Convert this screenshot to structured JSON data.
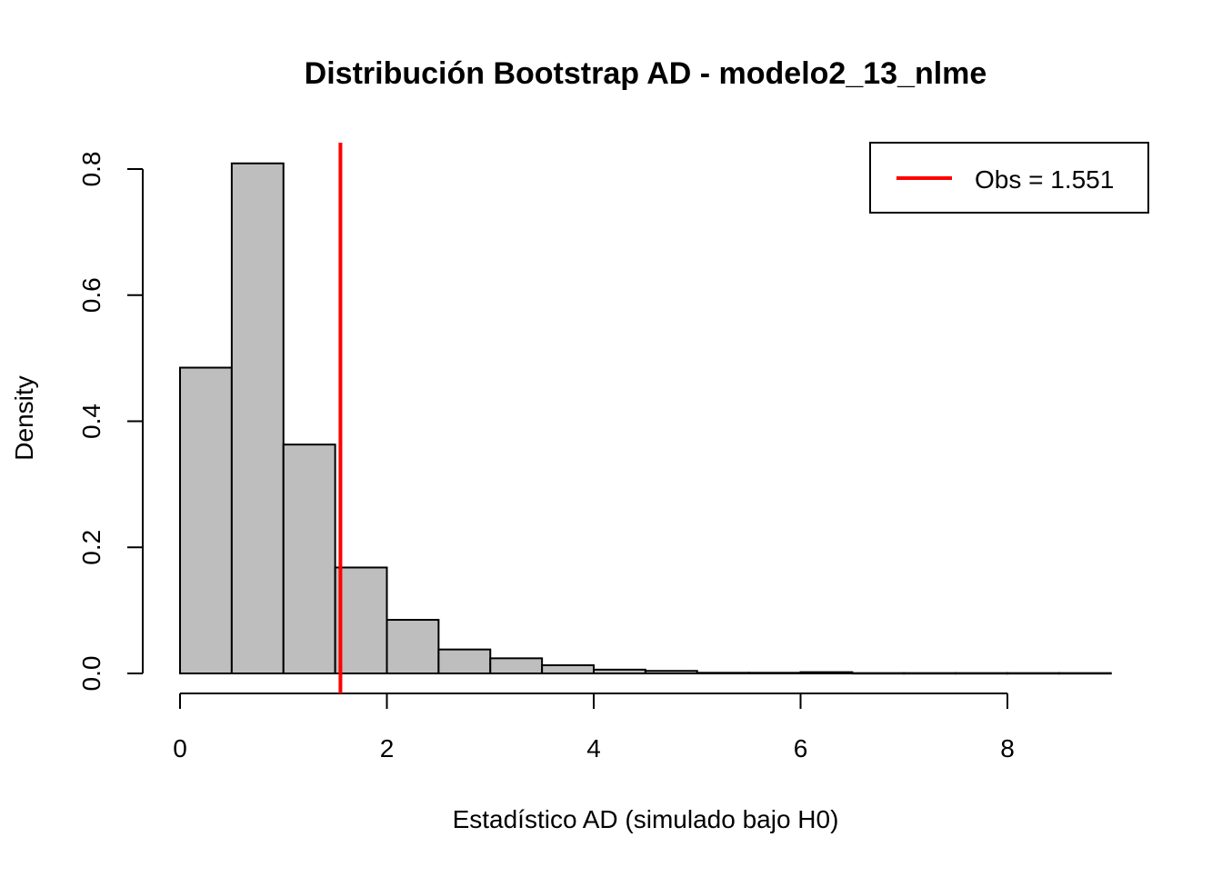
{
  "chart_data": {
    "type": "bar",
    "subtype": "histogram",
    "title": "Distribución Bootstrap AD - modelo2_13_nlme",
    "xlabel": "Estadístico AD (simulado bajo H0)",
    "ylabel": "Density",
    "bin_edges": [
      0,
      0.5,
      1,
      1.5,
      2,
      2.5,
      3,
      3.5,
      4,
      4.5,
      5,
      5.5,
      6,
      6.5,
      7,
      7.5,
      8,
      8.5,
      9
    ],
    "values": [
      0.485,
      0.809,
      0.363,
      0.168,
      0.085,
      0.038,
      0.024,
      0.013,
      0.006,
      0.004,
      0.001,
      0.001,
      0.002,
      0.0005,
      0.0005,
      0.0005,
      0.0005,
      0.0005
    ],
    "xlim": [
      0,
      9
    ],
    "ylim": [
      0,
      0.8
    ],
    "x_ticks": [
      0,
      2,
      4,
      6,
      8
    ],
    "x_tick_labels": [
      "0",
      "2",
      "4",
      "6",
      "8"
    ],
    "y_ticks": [
      0,
      0.2,
      0.4,
      0.6,
      0.8
    ],
    "y_tick_labels": [
      "0.0",
      "0.2",
      "0.4",
      "0.6",
      "0.8"
    ],
    "grid": false,
    "bar_color": "#BEBEBE",
    "bar_edge_color": "#000000",
    "observed_line": {
      "x": 1.551,
      "color": "#FF0000"
    },
    "legend": {
      "placement": "top-right",
      "entries": [
        {
          "label": "Obs = 1.551",
          "color": "#FF0000"
        }
      ]
    }
  }
}
